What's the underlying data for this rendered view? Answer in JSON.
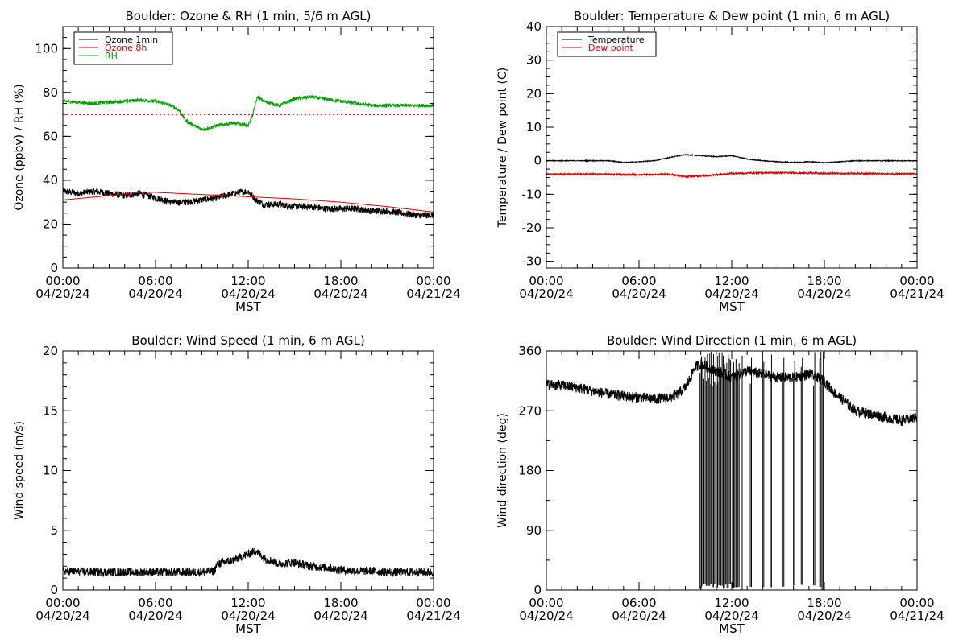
{
  "chart_data": [
    {
      "type": "line",
      "title": "Boulder: Ozone & RH (1 min, 5/6 m AGL)",
      "ylabel": "Ozone (ppbv) / RH (%)",
      "xlabel": "MST",
      "ylim": [
        0,
        110
      ],
      "yticks": [
        0,
        20,
        40,
        60,
        80,
        100
      ],
      "x_tick_labels": [
        [
          "00:00",
          "04/20/24"
        ],
        [
          "06:00",
          "04/20/24"
        ],
        [
          "12:00",
          "04/20/24"
        ],
        [
          "18:00",
          "04/20/24"
        ],
        [
          "00:00",
          "04/21/24"
        ]
      ],
      "legend": "top-left",
      "series": [
        {
          "name": "Ozone 1min",
          "color": "#000000",
          "noise": 1.5,
          "x": [
            0,
            1,
            2,
            3,
            4,
            5,
            6,
            7,
            8,
            9,
            10,
            11,
            12,
            12.5,
            13,
            14,
            15,
            16,
            17,
            18,
            19,
            20,
            21,
            22,
            23,
            24
          ],
          "y": [
            35,
            34,
            35,
            34,
            33,
            34,
            32,
            30,
            30,
            31,
            32,
            34,
            35,
            31,
            29,
            29,
            28,
            28,
            27,
            27,
            27,
            26,
            26,
            25,
            24,
            24
          ]
        },
        {
          "name": "Ozone 8h",
          "color": "#e00000",
          "noise": 0,
          "x": [
            0,
            3,
            5,
            6,
            9,
            12,
            15,
            18,
            21,
            24
          ],
          "y": [
            31,
            33,
            34.5,
            34.5,
            33.5,
            32.5,
            31.5,
            30,
            28,
            25.5
          ]
        },
        {
          "name": "RH",
          "color": "#00a000",
          "noise": 0.8,
          "x": [
            0,
            2,
            4,
            5,
            6,
            7,
            7.5,
            8,
            9,
            10,
            11,
            12,
            12.3,
            12.6,
            13,
            14,
            15,
            16,
            17,
            18,
            19,
            20,
            22,
            24
          ],
          "y": [
            76,
            75,
            76,
            76.5,
            76,
            74,
            72,
            67,
            63,
            65,
            66,
            65,
            70,
            78,
            76,
            74,
            77,
            78,
            77,
            76,
            75,
            74,
            74,
            74
          ]
        },
        {
          "name": "",
          "color": "#e00000",
          "dotted": true,
          "noise": 0,
          "x": [
            0,
            24
          ],
          "y": [
            70,
            70
          ]
        }
      ]
    },
    {
      "type": "line",
      "title": "Boulder: Temperature & Dew point (1 min, 6 m AGL)",
      "ylabel": "Temperature / Dew point (C)",
      "xlabel": "MST",
      "ylim": [
        -32,
        40
      ],
      "yticks": [
        -30,
        -20,
        -10,
        0,
        10,
        20,
        30,
        40
      ],
      "x_tick_labels": [
        [
          "00:00",
          "04/20/24"
        ],
        [
          "06:00",
          "04/20/24"
        ],
        [
          "12:00",
          "04/20/24"
        ],
        [
          "18:00",
          "04/20/24"
        ],
        [
          "00:00",
          "04/21/24"
        ]
      ],
      "legend": "top-left",
      "series": [
        {
          "name": "Temperature",
          "color": "#000000",
          "noise": 0.12,
          "x": [
            0,
            2,
            4,
            5,
            6,
            7,
            8,
            9,
            10,
            11,
            12,
            13,
            14,
            15,
            16,
            17,
            18,
            19,
            20,
            22,
            24
          ],
          "y": [
            0,
            0,
            0,
            -0.5,
            -0.3,
            0,
            1,
            1.8,
            1.5,
            1.2,
            1.5,
            0.5,
            0,
            -0.3,
            -0.5,
            -0.3,
            -0.6,
            -0.3,
            0,
            0,
            0
          ]
        },
        {
          "name": "Dew point",
          "color": "#e00000",
          "noise": 0.25,
          "x": [
            0,
            3,
            6,
            8,
            9,
            10,
            11,
            12,
            14,
            16,
            18,
            20,
            22,
            24
          ],
          "y": [
            -4,
            -4,
            -4.2,
            -4,
            -4.8,
            -4.5,
            -4.2,
            -3.8,
            -3.6,
            -3.6,
            -3.8,
            -3.8,
            -3.9,
            -3.9
          ]
        }
      ]
    },
    {
      "type": "line",
      "title": "Boulder: Wind Speed (1 min, 6 m AGL)",
      "ylabel": "Wind speed (m/s)",
      "xlabel": "MST",
      "ylim": [
        0,
        20
      ],
      "yticks": [
        0,
        5,
        10,
        15,
        20
      ],
      "x_tick_labels": [
        [
          "00:00",
          "04/20/24"
        ],
        [
          "06:00",
          "04/20/24"
        ],
        [
          "12:00",
          "04/20/24"
        ],
        [
          "18:00",
          "04/20/24"
        ],
        [
          "00:00",
          "04/21/24"
        ]
      ],
      "series": [
        {
          "name": "",
          "color": "#000000",
          "noise": 0.35,
          "x": [
            0,
            2,
            4,
            6,
            8,
            9,
            9.8,
            10,
            11,
            12,
            12.5,
            13,
            14,
            15,
            16,
            17,
            18,
            19,
            20,
            21,
            22,
            23,
            24
          ],
          "y": [
            1.6,
            1.5,
            1.5,
            1.5,
            1.5,
            1.5,
            1.6,
            2.2,
            2.5,
            3.0,
            3.3,
            2.7,
            2.2,
            2.3,
            2.0,
            1.9,
            1.7,
            1.6,
            1.6,
            1.5,
            1.5,
            1.5,
            1.5
          ]
        }
      ]
    },
    {
      "type": "line",
      "title": "Boulder: Wind Direction (1 min, 6 m AGL)",
      "ylabel": "Wind direction (deg)",
      "xlabel": "MST",
      "ylim": [
        0,
        360
      ],
      "yticks": [
        0,
        90,
        180,
        270,
        360
      ],
      "x_tick_labels": [
        [
          "00:00",
          "04/20/24"
        ],
        [
          "06:00",
          "04/20/24"
        ],
        [
          "12:00",
          "04/20/24"
        ],
        [
          "18:00",
          "04/20/24"
        ],
        [
          "00:00",
          "04/21/24"
        ]
      ],
      "series": [
        {
          "name": "",
          "color": "#000000",
          "noise": 8,
          "x": [
            0,
            1,
            2,
            3,
            4,
            5,
            6,
            7,
            8,
            8.5,
            9,
            9.3,
            9.6,
            10,
            11,
            12,
            13,
            14,
            15,
            16,
            17,
            18,
            18.5,
            19,
            20,
            21,
            22,
            23,
            24
          ],
          "y": [
            310,
            308,
            305,
            300,
            295,
            292,
            290,
            288,
            290,
            295,
            305,
            318,
            335,
            340,
            330,
            320,
            330,
            325,
            320,
            320,
            325,
            315,
            300,
            290,
            270,
            265,
            260,
            255,
            260
          ]
        }
      ],
      "wrap_drops_hours": [
        9.95,
        10.05,
        10.2,
        10.35,
        10.5,
        10.6,
        10.75,
        10.9,
        11.0,
        11.1,
        11.3,
        11.45,
        11.6,
        11.7,
        11.85,
        12.05,
        12.2,
        12.4,
        12.6,
        13.2,
        14.0,
        14.5,
        15.3,
        16.0,
        16.5,
        17.3,
        17.7,
        17.85
      ]
    }
  ]
}
